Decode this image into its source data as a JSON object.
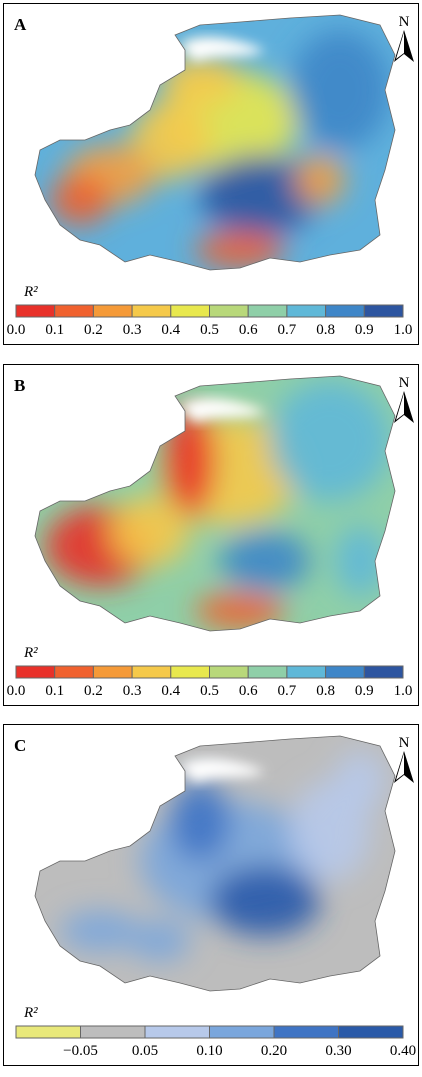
{
  "panels": [
    {
      "label": "A",
      "north": "N",
      "legend_title": "R²",
      "legend_colors": [
        "#e8312a",
        "#f0612e",
        "#f59a38",
        "#f5c94a",
        "#e8e84e",
        "#b8d87a",
        "#8fcfa8",
        "#5fb8d8",
        "#3e86c8",
        "#2d55a0"
      ],
      "legend_ticks": [
        "0.0",
        "0.1",
        "0.2",
        "0.3",
        "0.4",
        "0.5",
        "0.6",
        "0.7",
        "0.8",
        "0.9",
        "1.0"
      ]
    },
    {
      "label": "B",
      "north": "N",
      "legend_title": "R²",
      "legend_colors": [
        "#e8312a",
        "#f0612e",
        "#f59a38",
        "#f5c94a",
        "#e8e84e",
        "#b8d87a",
        "#8fcfa8",
        "#5fb8d8",
        "#3e86c8",
        "#2d55a0"
      ],
      "legend_ticks": [
        "0.0",
        "0.1",
        "0.2",
        "0.3",
        "0.4",
        "0.5",
        "0.6",
        "0.7",
        "0.8",
        "0.9",
        "1.0"
      ]
    },
    {
      "label": "C",
      "north": "N",
      "legend_title": "R²",
      "legend_colors": [
        "#e8e87a",
        "#bdbdbd",
        "#b7c9ea",
        "#7aa6dc",
        "#3f74c4",
        "#2a5aa8"
      ],
      "legend_ticks": [
        "−0.05",
        "0.05",
        "0.10",
        "0.20",
        "0.30",
        "0.40"
      ]
    }
  ]
}
